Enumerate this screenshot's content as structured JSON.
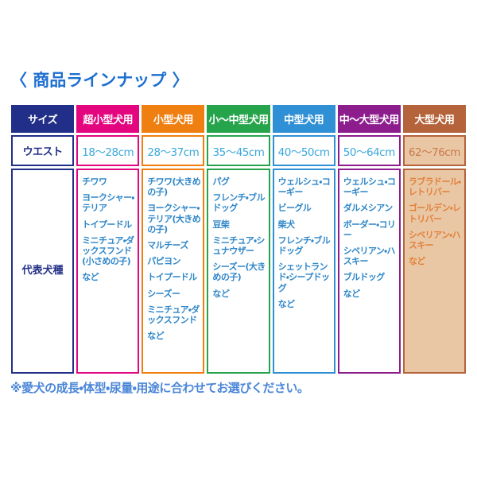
{
  "page": {
    "title": "〈 商品ラインナップ 〉",
    "footnote": "※愛犬の成長・体型・尿量・用途に合わせてお選びください。"
  },
  "label_column": {
    "size": "サイズ",
    "waist": "ウエスト",
    "breeds": "代表犬種",
    "color": "#222f88"
  },
  "table": {
    "columns": [
      {
        "label": "超小型犬用",
        "waist": "18〜28cm",
        "color": "#e3067f",
        "cell_bg": "#ffffff",
        "waist_text": "#3aa8dc",
        "breed_text": "#2e86c8",
        "breeds": [
          "チワワ",
          "ヨークシャー・テリア",
          "トイプードル",
          "ミニチュア・ダックスフンド(小さめの子)",
          "など"
        ]
      },
      {
        "label": "小型犬用",
        "waist": "28〜37cm",
        "color": "#ee7f10",
        "cell_bg": "#ffffff",
        "waist_text": "#3aa8dc",
        "breed_text": "#2e86c8",
        "breeds": [
          "チワワ(大きめの子)",
          "ヨークシャー・テリア(大きめの子)",
          "マルチーズ",
          "パピヨン",
          "トイプードル",
          "シーズー",
          "ミニチュア・ダックスフンド",
          "など"
        ]
      },
      {
        "label": "小〜中型犬用",
        "waist": "35〜45cm",
        "color": "#26a44c",
        "cell_bg": "#ffffff",
        "waist_text": "#3aa8dc",
        "breed_text": "#2e86c8",
        "breeds": [
          "パグ",
          "フレンチ・ブルドッグ",
          "豆柴",
          "ミニチュア・シュナウザー",
          "シーズー(大きめの子)",
          "など"
        ]
      },
      {
        "label": "中型犬用",
        "waist": "40〜50cm",
        "color": "#2f90d5",
        "cell_bg": "#ffffff",
        "waist_text": "#3aa8dc",
        "breed_text": "#2e86c8",
        "breeds": [
          "ウェルシュ・コーギー",
          "ビーグル",
          "柴犬",
          "フレンチ・ブルドッグ",
          "シェットランド・シープドッグ",
          "など"
        ]
      },
      {
        "label": "中〜大型犬用",
        "waist": "50〜64cm",
        "color": "#8d1d8d",
        "cell_bg": "#ffffff",
        "waist_text": "#3aa8dc",
        "breed_text": "#2e86c8",
        "breeds": [
          "ウェルシュ・コーギー",
          "ダルメシアン",
          "ボーダー・コリー",
          "シベリアン・ハスキー",
          "ブルドッグ",
          "など"
        ]
      },
      {
        "label": "大型犬用",
        "waist": "62〜76cm",
        "color": "#b4633a",
        "cell_bg": "#eac7a4",
        "waist_text": "#c8784e",
        "breed_text": "#e0813c",
        "breeds": [
          "ラブラドール・レトリバー",
          "ゴールデン・レトリバー",
          "シベリアン・ハスキー",
          "など"
        ]
      }
    ]
  },
  "chart_data": {
    "type": "table",
    "title": "〈 商品ラインナップ 〉",
    "columns": [
      "サイズ",
      "超小型犬用",
      "小型犬用",
      "小〜中型犬用",
      "中型犬用",
      "中〜大型犬用",
      "大型犬用"
    ],
    "rows": [
      [
        "ウエスト",
        "18〜28cm",
        "28〜37cm",
        "35〜45cm",
        "40〜50cm",
        "50〜64cm",
        "62〜76cm"
      ],
      [
        "代表犬種",
        "チワワ／ヨークシャー・テリア／トイプードル／ミニチュア・ダックスフンド(小さめの子)／など",
        "チワワ(大きめの子)／ヨークシャー・テリア(大きめの子)／マルチーズ／パピヨン／トイプードル／シーズー／ミニチュア・ダックスフンド／など",
        "パグ／フレンチ・ブルドッグ／豆柴／ミニチュア・シュナウザー／シーズー(大きめの子)／など",
        "ウェルシュ・コーギー／ビーグル／柴犬／フレンチ・ブルドッグ／シェットランド・シープドッグ／など",
        "ウェルシュ・コーギー／ダルメシアン／ボーダー・コリー／シベリアン・ハスキー／ブルドッグ／など",
        "ラブラドール・レトリバー／ゴールデン・レトリバー／シベリアン・ハスキー／など"
      ]
    ],
    "column_colors": [
      "#222f88",
      "#e3067f",
      "#ee7f10",
      "#26a44c",
      "#2f90d5",
      "#8d1d8d",
      "#b4633a"
    ],
    "footnote": "※愛犬の成長・体型・尿量・用途に合わせてお選びください。"
  }
}
